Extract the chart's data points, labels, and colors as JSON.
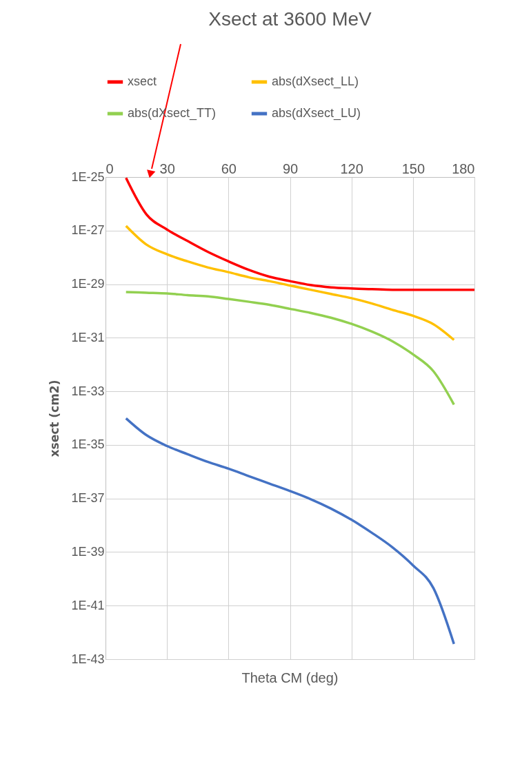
{
  "chart_data": {
    "type": "line",
    "title": "Xsect at 3600 MeV",
    "xlabel": "Theta CM (deg)",
    "ylabel": "xsect (cm2)",
    "x": [
      10,
      20,
      30,
      40,
      50,
      60,
      70,
      80,
      90,
      100,
      110,
      120,
      130,
      140,
      150,
      160,
      170
    ],
    "series": [
      {
        "name": "xsect",
        "color": "#ff0000",
        "x": [
          10,
          20,
          30,
          40,
          50,
          60,
          70,
          80,
          90,
          100,
          110,
          120,
          130,
          140,
          150,
          160,
          170,
          180
        ],
        "values": [
          9.3e-26,
          4e-27,
          1.1e-27,
          4.1e-28,
          1.6e-28,
          7.1e-29,
          3.4e-29,
          1.9e-29,
          1.3e-29,
          9.3e-30,
          7.6e-30,
          6.9e-30,
          6.5e-30,
          6.2e-30,
          6.2e-30,
          6.2e-30,
          6.2e-30,
          6.2e-30
        ]
      },
      {
        "name": "abs(dXsect_LL)",
        "color": "#ffc000",
        "values": [
          1.5e-27,
          3e-28,
          1.3e-28,
          7.1e-29,
          4.2e-29,
          2.8e-29,
          1.8e-29,
          1.3e-29,
          8.9e-30,
          6.2e-30,
          4.3e-30,
          3e-30,
          1.9e-30,
          1.1e-30,
          6.6e-31,
          3.2e-31,
          8.3e-32
        ]
      },
      {
        "name": "abs(dXsect_TT)",
        "color": "#92d050",
        "values": [
          5.1e-30,
          4.8e-30,
          4.5e-30,
          3.9e-30,
          3.5e-30,
          2.8e-30,
          2.2e-30,
          1.7e-30,
          1.2e-30,
          8.5e-31,
          5.6e-31,
          3.3e-31,
          1.7e-31,
          7.4e-32,
          2.4e-32,
          5.6e-33,
          3.2e-34
        ]
      },
      {
        "name": "abs(dXsect_LU)",
        "color": "#4472c4",
        "values": [
          9.8e-35,
          2.3e-35,
          9.1e-36,
          4.5e-36,
          2.3e-36,
          1.3e-36,
          6.8e-37,
          3.6e-37,
          1.9e-37,
          9.5e-38,
          4.2e-38,
          1.6e-38,
          5.2e-39,
          1.5e-39,
          3.2e-40,
          4.5e-41,
          3.7e-43
        ]
      }
    ],
    "xlim": [
      0,
      180
    ],
    "xticks": [
      0,
      30,
      60,
      90,
      120,
      150,
      180
    ],
    "ylim": [
      1e-43,
      1e-25
    ],
    "yticks": [
      {
        "value": 1e-25,
        "label": "1E-25"
      },
      {
        "value": 1e-27,
        "label": "1E-27"
      },
      {
        "value": 1e-29,
        "label": "1E-29"
      },
      {
        "value": 1e-31,
        "label": "1E-31"
      },
      {
        "value": 1e-33,
        "label": "1E-33"
      },
      {
        "value": 1e-35,
        "label": "1E-35"
      },
      {
        "value": 1e-37,
        "label": "1E-37"
      },
      {
        "value": 1e-39,
        "label": "1E-39"
      },
      {
        "value": 1e-41,
        "label": "1E-41"
      },
      {
        "value": 1e-43,
        "label": "1E-43"
      }
    ],
    "log": "y",
    "grid": true,
    "legend": "top",
    "marker": "none",
    "line_style": "solid"
  }
}
